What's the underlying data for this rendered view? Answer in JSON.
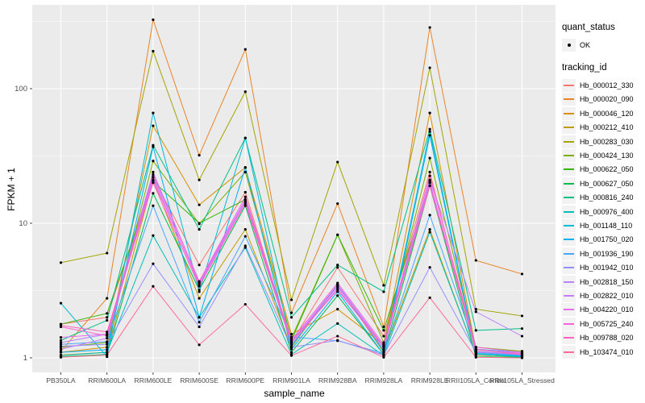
{
  "chart_data": {
    "type": "line",
    "title": "",
    "xlabel": "sample_name",
    "ylabel": "FPKM + 1",
    "yscale": "log10",
    "yticks": [
      1,
      10,
      100
    ],
    "ylim_log10": [
      -0.11,
      2.62
    ],
    "grid": "white major and minor gridlines on gray panel",
    "legend_position": "right",
    "point_color": "#000000",
    "categories": [
      "PB350LA",
      "RRIM600LA",
      "RRIM600LE",
      "RRIM600SE",
      "RRIM600PE",
      "RRIM901LA",
      "RRIM928BA",
      "RRIM928LA",
      "RRIM928LE",
      "RRII105LA_Control",
      "RRII105LA_Stressed"
    ],
    "series": [
      {
        "name": "Hb_000012_330",
        "color": "#F8766D",
        "values": [
          1.78,
          2.0,
          22,
          4.9,
          17,
          1.3,
          4.7,
          1.45,
          24,
          1.1,
          1.05
        ]
      },
      {
        "name": "Hb_000020_090",
        "color": "#E88526",
        "values": [
          1.12,
          2.77,
          325,
          32,
          196,
          2.16,
          14,
          1.7,
          285,
          5.3,
          4.2
        ]
      },
      {
        "name": "Hb_000046_120",
        "color": "#D89000",
        "values": [
          1.1,
          1.2,
          53,
          13.7,
          26,
          1.5,
          2.3,
          1.25,
          66,
          1.15,
          1.08
        ]
      },
      {
        "name": "Hb_000212_410",
        "color": "#C09B00",
        "values": [
          1.05,
          1.1,
          21,
          2.77,
          9.0,
          1.2,
          3.5,
          1.1,
          9.0,
          1.05,
          1.02
        ]
      },
      {
        "name": "Hb_000283_030",
        "color": "#A3A500",
        "values": [
          5.1,
          6.0,
          190,
          21,
          95,
          2.7,
          28.5,
          3.46,
          143,
          2.3,
          2.05
        ]
      },
      {
        "name": "Hb_000424_130",
        "color": "#7CAE00",
        "values": [
          1.2,
          1.3,
          29,
          9.9,
          24,
          1.4,
          8.2,
          1.3,
          30.5,
          1.2,
          1.12
        ]
      },
      {
        "name": "Hb_000622_050",
        "color": "#39B600",
        "values": [
          1.78,
          2.14,
          20.5,
          10,
          15,
          1.35,
          8.2,
          1.6,
          20,
          1.12,
          1.06
        ]
      },
      {
        "name": "Hb_000627_050",
        "color": "#00BB4E",
        "values": [
          1.02,
          1.06,
          16.7,
          3.2,
          13.5,
          1.1,
          2.9,
          1.06,
          19,
          1.02,
          1.01
        ]
      },
      {
        "name": "Hb_000816_240",
        "color": "#00C087",
        "values": [
          1.35,
          1.9,
          38,
          9.0,
          43,
          2.0,
          4.9,
          3.1,
          50,
          1.6,
          1.65
        ]
      },
      {
        "name": "Hb_000976_400",
        "color": "#00C0B8",
        "values": [
          1.04,
          1.1,
          8.1,
          2.0,
          6.6,
          1.06,
          1.8,
          1.04,
          8.6,
          1.06,
          1.02
        ]
      },
      {
        "name": "Hb_001148_110",
        "color": "#00BCD8",
        "values": [
          2.55,
          1.02,
          66,
          3.1,
          43,
          1.22,
          3.5,
          1.12,
          48,
          1.1,
          1.04
        ]
      },
      {
        "name": "Hb_001750_020",
        "color": "#00B0F6",
        "values": [
          1.1,
          1.15,
          37,
          2.0,
          26,
          1.16,
          3.1,
          1.06,
          45,
          1.08,
          1.03
        ]
      },
      {
        "name": "Hb_001936_190",
        "color": "#47A8FF",
        "values": [
          1.26,
          1.32,
          13.5,
          1.84,
          8.0,
          1.43,
          1.34,
          1.08,
          11.5,
          1.16,
          1.1
        ]
      },
      {
        "name": "Hb_001942_010",
        "color": "#9590FF",
        "values": [
          1.22,
          1.26,
          5.0,
          1.7,
          6.8,
          1.2,
          1.35,
          1.05,
          4.7,
          1.1,
          1.05
        ]
      },
      {
        "name": "Hb_002818_150",
        "color": "#B983FF",
        "values": [
          1.3,
          1.5,
          24,
          3.65,
          15,
          1.32,
          3.5,
          1.22,
          21,
          2.2,
          1.45
        ]
      },
      {
        "name": "Hb_002822_010",
        "color": "#C77CFF",
        "values": [
          1.16,
          1.4,
          22,
          3.5,
          14.5,
          1.26,
          3.3,
          1.16,
          20.5,
          1.12,
          1.06
        ]
      },
      {
        "name": "Hb_004220_010",
        "color": "#E76BF3",
        "values": [
          1.42,
          1.5,
          21,
          3.6,
          14.5,
          1.3,
          3.4,
          1.2,
          20,
          1.15,
          1.08
        ]
      },
      {
        "name": "Hb_005725_240",
        "color": "#FA62DB",
        "values": [
          1.7,
          1.46,
          23,
          3.7,
          15.7,
          1.36,
          3.6,
          1.26,
          22.5,
          1.2,
          1.1
        ]
      },
      {
        "name": "Hb_009788_020",
        "color": "#FF62BC",
        "values": [
          1.74,
          1.56,
          20,
          3.4,
          14,
          1.31,
          3.2,
          1.21,
          19,
          1.16,
          1.06
        ]
      },
      {
        "name": "Hb_103474_010",
        "color": "#FF6A98",
        "values": [
          1.01,
          1.05,
          3.4,
          1.25,
          2.5,
          1.04,
          1.45,
          1.01,
          2.8,
          1.01,
          1.0
        ]
      }
    ]
  },
  "legend": {
    "quant_status": {
      "title": "quant_status",
      "items": [
        {
          "label": "OK",
          "symbol": "point"
        }
      ]
    },
    "tracking_id": {
      "title": "tracking_id"
    }
  },
  "colors": {
    "panel_bg": "#EBEBEB",
    "grid": "#FFFFFF",
    "key_bg": "#F2F2F2",
    "tick_text": "#4D4D4D",
    "tick_mark": "#333333",
    "point": "#000000"
  }
}
